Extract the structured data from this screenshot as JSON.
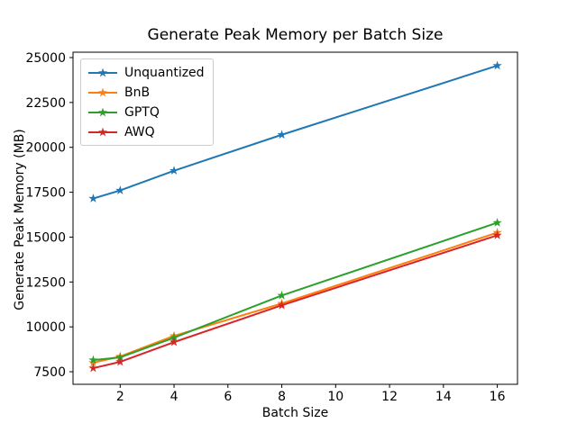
{
  "figure": {
    "background": "#ffffff",
    "frame_color": "#000000"
  },
  "chart_data": {
    "type": "line",
    "title": "Generate Peak Memory per Batch Size",
    "xlabel": "Batch Size",
    "ylabel": "Generate Peak Memory (MB)",
    "x": [
      1,
      2,
      4,
      8,
      16
    ],
    "series": [
      {
        "name": "Unquantized",
        "color": "#1f77b4",
        "marker": "star",
        "values": [
          17150,
          17600,
          18700,
          20700,
          24550
        ]
      },
      {
        "name": "BnB",
        "color": "#ff7f0e",
        "marker": "star",
        "values": [
          8000,
          8350,
          9500,
          11300,
          15250
        ]
      },
      {
        "name": "GPTQ",
        "color": "#2ca02c",
        "marker": "star",
        "values": [
          8150,
          8300,
          9400,
          11750,
          15800
        ]
      },
      {
        "name": "AWQ",
        "color": "#d62728",
        "marker": "star",
        "values": [
          7700,
          8050,
          9150,
          11200,
          15100
        ]
      }
    ],
    "xticks": [
      2,
      4,
      6,
      8,
      10,
      12,
      14,
      16
    ],
    "yticks": [
      7500,
      10000,
      12500,
      15000,
      17500,
      20000,
      22500,
      25000
    ],
    "xlim": [
      0.25,
      16.75
    ],
    "ylim": [
      6800,
      25300
    ],
    "grid": false,
    "legend_position": "upper-left"
  }
}
